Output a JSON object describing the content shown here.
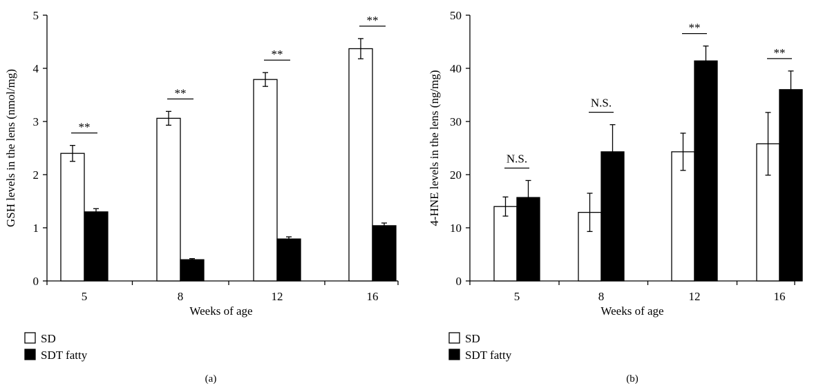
{
  "chart_data": [
    {
      "type": "bar",
      "panel_label": "(a)",
      "xlabel": "Weeks of age",
      "ylabel": "GSH levels in the lens (nmol/mg)",
      "ylim": [
        0,
        5
      ],
      "yticks": [
        "0",
        "1",
        "2",
        "3",
        "4",
        "5"
      ],
      "categories": [
        "5",
        "8",
        "12",
        "16"
      ],
      "series": [
        {
          "name": "SD",
          "values": [
            2.4,
            3.06,
            3.79,
            4.37
          ],
          "errors": [
            0.15,
            0.13,
            0.13,
            0.19
          ],
          "color": "#ffffff"
        },
        {
          "name": "SDT fatty",
          "values": [
            1.3,
            0.4,
            0.79,
            1.04
          ],
          "errors": [
            0.06,
            0.02,
            0.04,
            0.05
          ],
          "color": "#000000"
        }
      ],
      "significance": [
        "**",
        "**",
        "**",
        "**"
      ],
      "legend": "bottom-left",
      "grid": false
    },
    {
      "type": "bar",
      "panel_label": "(b)",
      "xlabel": "Weeks of age",
      "ylabel": "4-HNE levels in the lens (ng/mg)",
      "ylim": [
        0,
        50
      ],
      "yticks": [
        "0",
        "10",
        "20",
        "30",
        "40",
        "50"
      ],
      "categories": [
        "5",
        "8",
        "12",
        "16"
      ],
      "series": [
        {
          "name": "SD",
          "values": [
            14.0,
            12.9,
            24.3,
            25.8
          ],
          "errors": [
            1.8,
            3.6,
            3.5,
            5.9
          ],
          "color": "#ffffff"
        },
        {
          "name": "SDT fatty",
          "values": [
            15.7,
            24.3,
            41.4,
            36.0
          ],
          "errors": [
            3.2,
            5.1,
            2.8,
            3.5
          ],
          "color": "#000000"
        }
      ],
      "significance": [
        "N.S.",
        "N.S.",
        "**",
        "**"
      ],
      "legend": "bottom-left",
      "grid": false
    }
  ]
}
